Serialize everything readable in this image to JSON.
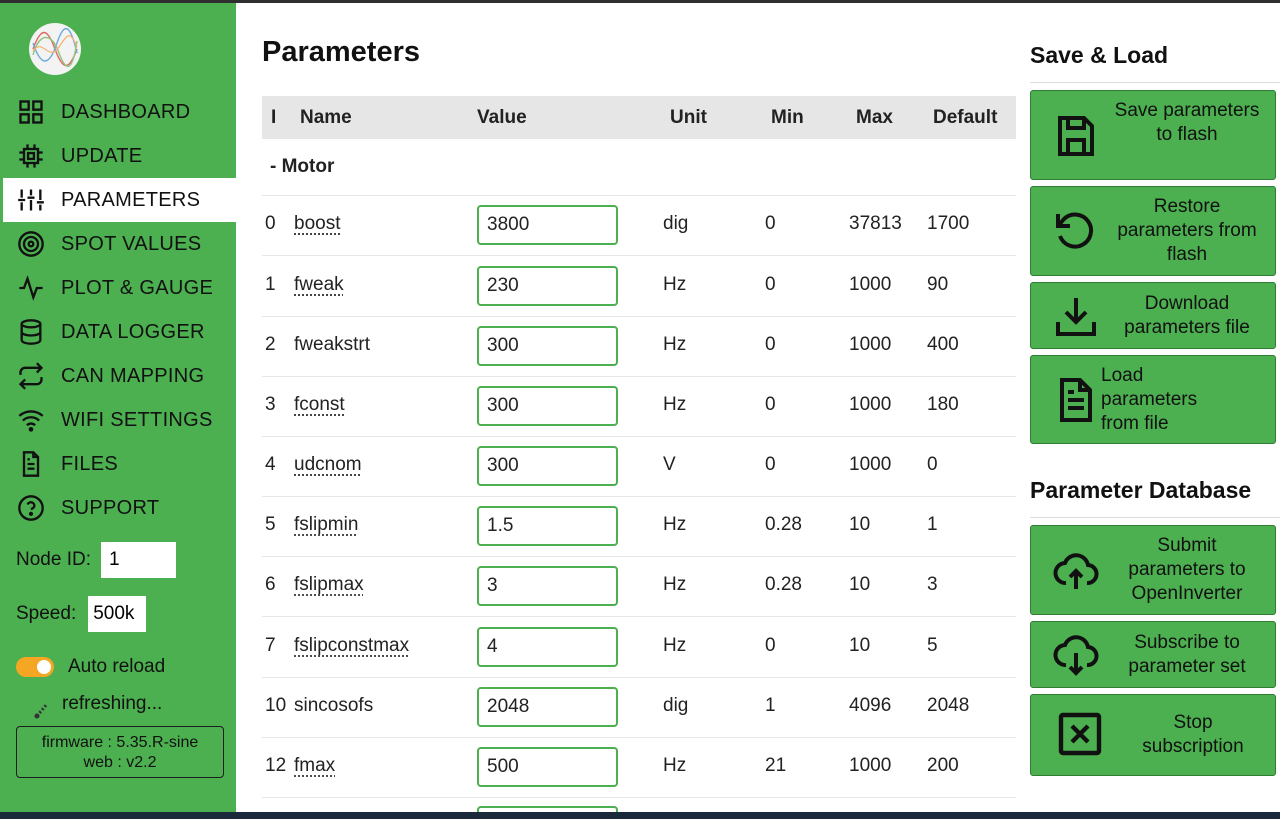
{
  "sidebar": {
    "nav": [
      {
        "label": "DASHBOARD",
        "icon": "dashboard-icon"
      },
      {
        "label": "UPDATE",
        "icon": "chip-icon"
      },
      {
        "label": "PARAMETERS",
        "icon": "sliders-icon"
      },
      {
        "label": "SPOT VALUES",
        "icon": "target-icon"
      },
      {
        "label": "PLOT & GAUGE",
        "icon": "pulse-icon"
      },
      {
        "label": "DATA LOGGER",
        "icon": "database-icon"
      },
      {
        "label": "CAN MAPPING",
        "icon": "swap-arrows-icon"
      },
      {
        "label": "WIFI SETTINGS",
        "icon": "wifi-icon"
      },
      {
        "label": "FILES",
        "icon": "file-icon"
      },
      {
        "label": "SUPPORT",
        "icon": "help-icon"
      }
    ],
    "active_item": "PARAMETERS",
    "node_id_label": "Node ID:",
    "node_id_value": "1",
    "speed_label": "Speed:",
    "speed_value": "500k",
    "auto_reload_label": "Auto reload",
    "auto_reload_on": true,
    "refresh_label": "refreshing...",
    "firmware_line": "firmware : 5.35.R-sine",
    "web_line": "web : v2.2",
    "accent": "#4caf50"
  },
  "main": {
    "title": "Parameters",
    "columns": [
      "I",
      "Name",
      "Value",
      "Unit",
      "Min",
      "Max",
      "Default"
    ],
    "group": "- Motor",
    "rows": [
      {
        "i": "0",
        "name": "boost",
        "value": "3800",
        "unit": "dig",
        "min": "0",
        "max": "37813",
        "default": "1700"
      },
      {
        "i": "1",
        "name": "fweak",
        "value": "230",
        "unit": "Hz",
        "min": "0",
        "max": "1000",
        "default": "90"
      },
      {
        "i": "2",
        "name": "fweakstrt",
        "value": "300",
        "unit": "Hz",
        "min": "0",
        "max": "1000",
        "default": "400"
      },
      {
        "i": "3",
        "name": "fconst",
        "value": "300",
        "unit": "Hz",
        "min": "0",
        "max": "1000",
        "default": "180"
      },
      {
        "i": "4",
        "name": "udcnom",
        "value": "300",
        "unit": "V",
        "min": "0",
        "max": "1000",
        "default": "0"
      },
      {
        "i": "5",
        "name": "fslipmin",
        "value": "1.5",
        "unit": "Hz",
        "min": "0.28",
        "max": "10",
        "default": "1"
      },
      {
        "i": "6",
        "name": "fslipmax",
        "value": "3",
        "unit": "Hz",
        "min": "0.28",
        "max": "10",
        "default": "3"
      },
      {
        "i": "7",
        "name": "fslipconstmax",
        "value": "4",
        "unit": "Hz",
        "min": "0",
        "max": "10",
        "default": "5"
      },
      {
        "i": "10",
        "name": "sincosofs",
        "value": "2048",
        "unit": "dig",
        "min": "1",
        "max": "4096",
        "default": "2048"
      },
      {
        "i": "12",
        "name": "fmax",
        "value": "500",
        "unit": "Hz",
        "min": "21",
        "max": "1000",
        "default": "200"
      }
    ]
  },
  "right": {
    "save_load_title": "Save & Load",
    "save_flash": "Save parameters to flash",
    "restore_flash": "Restore parameters from flash",
    "download_file": "Download parameters file",
    "load_file": "Load parameters from file",
    "db_title": "Parameter Database",
    "submit": "Submit parameters to OpenInverter",
    "subscribe": "Subscribe to parameter set",
    "stop": "Stop subscription"
  }
}
